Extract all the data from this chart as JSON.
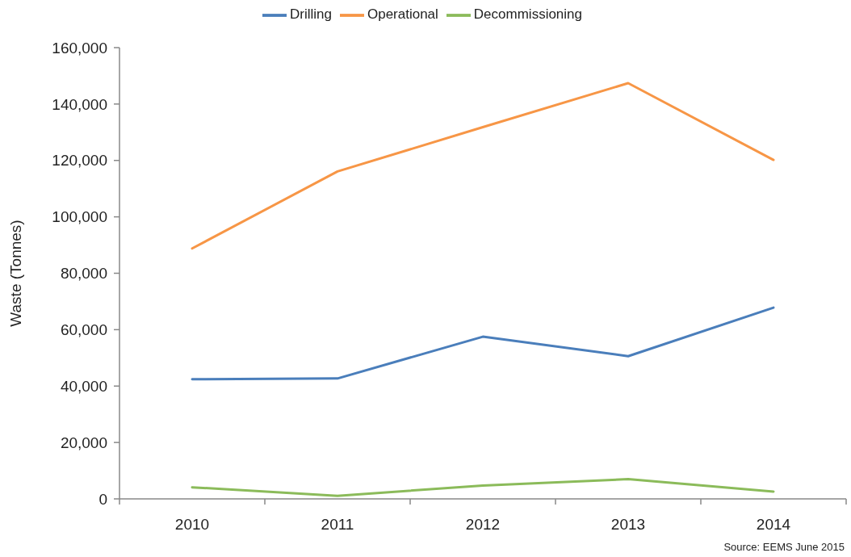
{
  "chart_data": {
    "type": "line",
    "ylabel": "Waste (Tonnes)",
    "annotations": [
      "Source: EEMS June 2015"
    ],
    "categories": [
      "2010",
      "2011",
      "2012",
      "2013",
      "2014"
    ],
    "ylim": [
      0,
      160000
    ],
    "yticks": [
      0,
      {
        "value": 20000,
        "label": "20,000"
      },
      {
        "value": 40000,
        "label": "40,000"
      },
      {
        "value": 60000,
        "label": "60,000"
      },
      {
        "value": 80000,
        "label": "80,000"
      },
      {
        "value": 100000,
        "label": "100,000"
      },
      {
        "value": 120000,
        "label": "120,000"
      },
      {
        "value": 140000,
        "label": "140,000"
      },
      {
        "value": 160000,
        "label": "160,000"
      }
    ],
    "series": [
      {
        "name": "Drilling",
        "color": "#4a7ebb",
        "values": [
          42400,
          42700,
          57500,
          50600,
          67800
        ]
      },
      {
        "name": "Operational",
        "color": "#f79646",
        "values": [
          88800,
          116100,
          131800,
          147400,
          120200
        ]
      },
      {
        "name": "Decommissioning",
        "color": "#8bbb5a",
        "values": [
          4100,
          1100,
          4700,
          7000,
          2600
        ]
      }
    ],
    "legend": "top",
    "grid": false,
    "marker": "none",
    "line_style": "solid"
  }
}
